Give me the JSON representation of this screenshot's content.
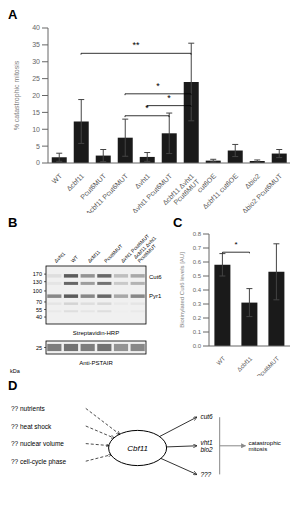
{
  "chart_data": [
    {
      "type": "bar",
      "title": "A",
      "categories": [
        "WT",
        "Δcbf11",
        "Pcut6MUT",
        "Δcbf11 Pcut6MUT",
        "Δvht1",
        "Δvht1 Pcut6MUT",
        "Δcbf11 Δvht1\nPcut6MUT",
        "cut6OE",
        "Δcbf11 cut6OE",
        "Δbio2",
        "Δbio2 Pcut6MUT"
      ],
      "values": [
        1.7,
        12.3,
        2.2,
        7.5,
        1.8,
        8.8,
        24.0,
        0.7,
        3.7,
        0.6,
        2.8
      ],
      "errors": [
        1.2,
        6.5,
        1.8,
        5.5,
        1.3,
        6.0,
        11.5,
        0.4,
        1.8,
        0.3,
        1.2
      ],
      "color": "#1a1a1a",
      "ylabel": "% catastrophic mitosis",
      "ylim": [
        0,
        40
      ],
      "yticks": [
        0,
        5,
        10,
        15,
        20,
        25,
        30,
        35,
        40
      ],
      "annotations": [
        {
          "from": "Δcbf11",
          "to": "Δcbf11 Δvht1\nPcut6MUT",
          "y": 32.5,
          "label": "**"
        },
        {
          "from": "Δcbf11 Pcut6MUT",
          "to": "Δcbf11 Δvht1\nPcut6MUT",
          "y": 20.5,
          "label": "*"
        },
        {
          "from": "Δvht1",
          "to": "Δcbf11 Δvht1\nPcut6MUT",
          "y": 17.0,
          "label": "*"
        },
        {
          "from": "Δcbf11 Pcut6MUT",
          "to": "Δvht1 Pcut6MUT",
          "y": 14.0,
          "label": "*"
        }
      ]
    },
    {
      "type": "blot",
      "title": "B",
      "categories": [
        "Δvht1",
        "WT",
        "Δcbf11",
        "Pcut6MUT",
        "Δvht1 Pcut6MUT",
        "Δcbf11 Δvht1\nPcut6MUT"
      ],
      "cells": [
        [
          0.15,
          0.75,
          0.5,
          0.7,
          0.3,
          0.4
        ],
        [
          0.12,
          0.7,
          0.45,
          0.65,
          0.25,
          0.35
        ],
        [
          0.55,
          0.75,
          0.55,
          0.7,
          0.4,
          0.55
        ],
        [
          0.12,
          0.2,
          0.15,
          0.18,
          0.1,
          0.12
        ],
        [
          0.1,
          0.15,
          0.12,
          0.15,
          0.08,
          0.1
        ],
        [
          0.6,
          0.65,
          0.6,
          0.65,
          0.5,
          0.55
        ]
      ],
      "annotations": {
        "kda": [
          "170",
          "130",
          "100",
          "70",
          "55",
          "40"
        ],
        "kda_bottom": "25",
        "unit": "kDa",
        "bands": [
          "Cut6",
          "Pyr1"
        ],
        "blots": [
          "Streptavidin-HRP",
          "Anti-PSTAIR"
        ]
      }
    },
    {
      "type": "bar",
      "title": "C",
      "categories": [
        "WT",
        "Δcbf11",
        "Pcut6MUT"
      ],
      "values": [
        0.58,
        0.31,
        0.53
      ],
      "errors": [
        0.08,
        0.1,
        0.2
      ],
      "color": "#1a1a1a",
      "ylabel": "Biotinylated Cut6 levels [AU]",
      "ylim": [
        0,
        0.8
      ],
      "yticks": [
        {
          "value": 0,
          "label": "0.0"
        },
        0.1,
        0.2,
        0.3,
        0.4,
        0.5,
        0.6,
        0.7,
        0.8
      ],
      "annotations": [
        {
          "from": "WT",
          "to": "Δcbf11",
          "y": 0.67,
          "label": "*"
        }
      ]
    },
    {
      "type": "diagram",
      "title": "D",
      "annotations": {
        "inputs": [
          "?? nutrients",
          "?? heat shock",
          "?? nuclear volume",
          "?? cell-cycle phase"
        ],
        "center": "Cbf11",
        "targets": [
          "cut6",
          "vht1\nbio2",
          "???"
        ],
        "output": "catastrophic\nmitosis"
      }
    }
  ]
}
